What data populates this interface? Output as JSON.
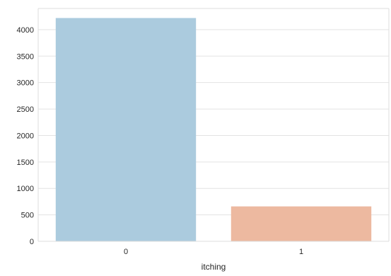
{
  "chart_data": {
    "type": "bar",
    "title": "",
    "xlabel": "itching",
    "ylabel": "",
    "categories": [
      "0",
      "1"
    ],
    "values": [
      4220,
      660
    ],
    "bar_colors": [
      "#abcbde",
      "#edb9a0"
    ],
    "ylim": [
      0,
      4400
    ],
    "yticks": [
      0,
      500,
      1000,
      1500,
      2000,
      2500,
      3000,
      3500,
      4000
    ],
    "grid": "horizontal",
    "legend": "none"
  },
  "colors": {
    "grid": "#e3e3e3",
    "axes": "#dddddd",
    "text": "#262626"
  }
}
